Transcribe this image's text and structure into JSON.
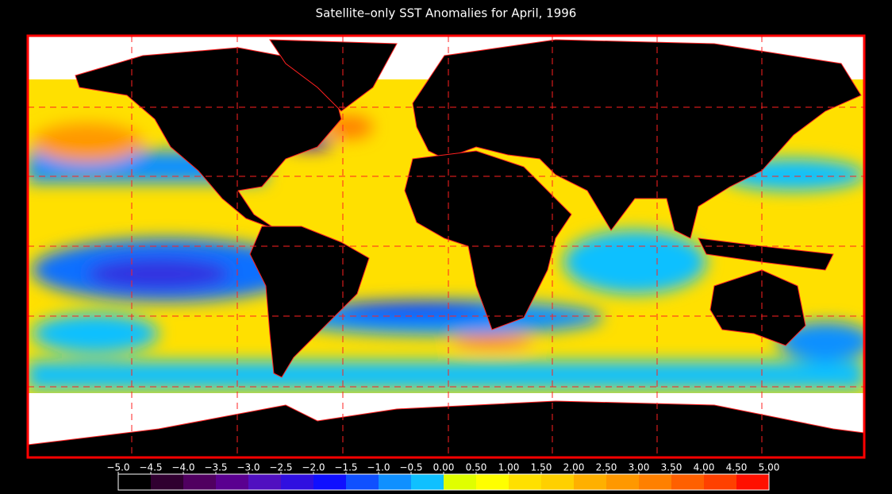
{
  "map": {
    "title": "Satellite–only SST Anomalies for April, 1996",
    "colorbar": {
      "ticks": [
        {
          "value": -5.0,
          "label": "−5.0"
        },
        {
          "value": -4.5,
          "label": "−4.5"
        },
        {
          "value": -4.0,
          "label": "−4.0"
        },
        {
          "value": -3.5,
          "label": "−3.5"
        },
        {
          "value": -3.0,
          "label": "−3.0"
        },
        {
          "value": -2.5,
          "label": "−2.5"
        },
        {
          "value": -2.0,
          "label": "−2.0"
        },
        {
          "value": -1.5,
          "label": "−1.5"
        },
        {
          "value": -1.0,
          "label": "−1.0"
        },
        {
          "value": -0.5,
          "label": "−0.5"
        },
        {
          "value": 0.0,
          "label": "0.00"
        },
        {
          "value": 0.5,
          "label": "0.50"
        },
        {
          "value": 1.0,
          "label": "1.00"
        },
        {
          "value": 1.5,
          "label": "1.50"
        },
        {
          "value": 2.0,
          "label": "2.00"
        },
        {
          "value": 2.5,
          "label": "2.50"
        },
        {
          "value": 3.0,
          "label": "3.00"
        },
        {
          "value": 3.5,
          "label": "3.50"
        },
        {
          "value": 4.0,
          "label": "4.00"
        },
        {
          "value": 4.5,
          "label": "4.50"
        },
        {
          "value": 5.0,
          "label": "5.00"
        }
      ],
      "colors": [
        "#000000",
        "#300030",
        "#500060",
        "#5a0090",
        "#5010c0",
        "#3010e0",
        "#1010ff",
        "#1050ff",
        "#1090ff",
        "#10c0ff",
        "#e0ff00",
        "#ffff00",
        "#ffe000",
        "#ffd000",
        "#ffb000",
        "#ff9800",
        "#ff8000",
        "#ff6000",
        "#ff4000",
        "#ff1000"
      ]
    }
  }
}
